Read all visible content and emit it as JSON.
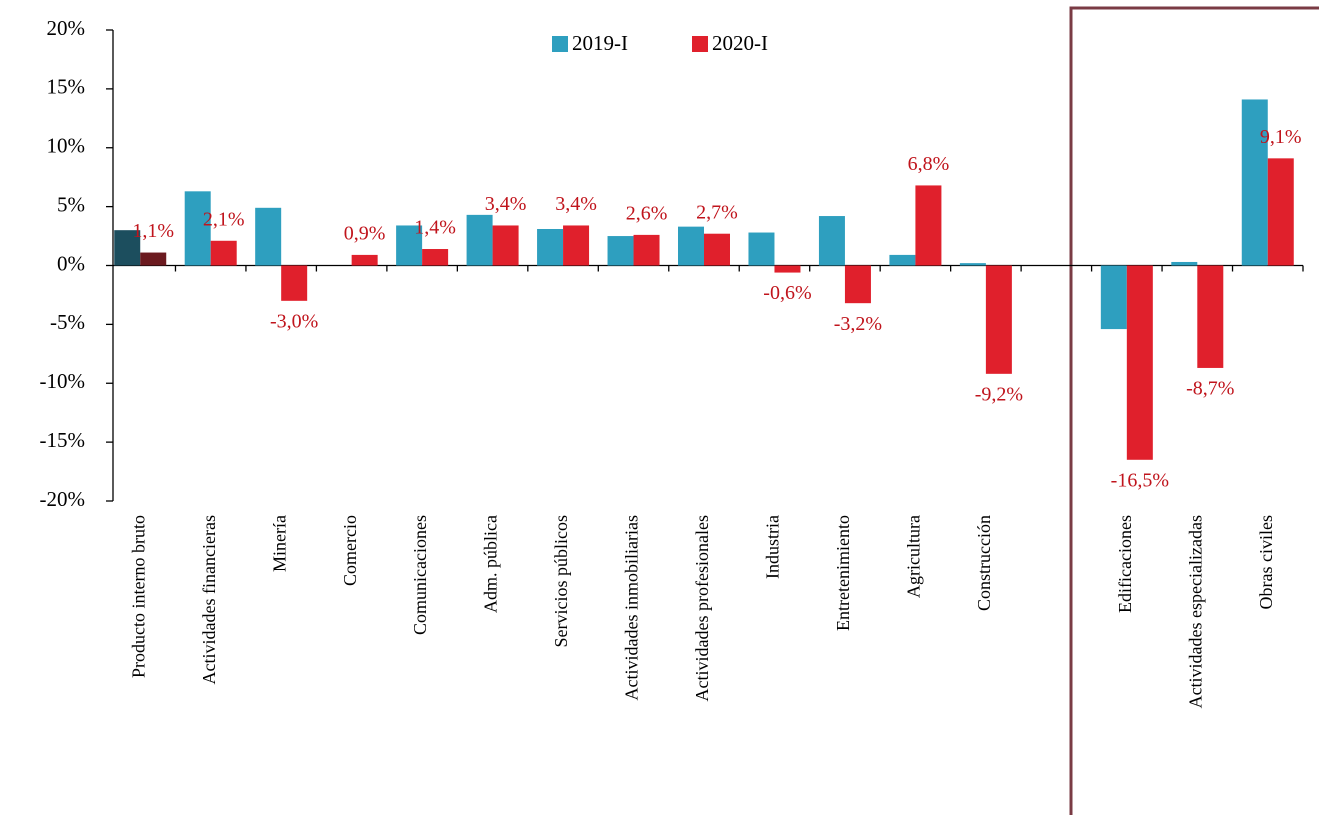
{
  "chart_data": {
    "type": "bar",
    "categories": [
      "Producto interno bruto",
      "Actividades financieras",
      "Minería",
      "Comercio",
      "Comunicaciones",
      "Adm. pública",
      "Servicios públicos",
      "Actividades inmobiliarias",
      "Actividades profesionales",
      "Industria",
      "Entretenimiento",
      "Agricultura",
      "Construcción",
      null,
      "Edificaciones",
      "Actividades especializadas",
      "Obras civiles"
    ],
    "series": [
      {
        "name": "2019-I",
        "color": "#2e9fbf",
        "colors": [
          "#1c4e5e",
          "#2e9fbf",
          "#2e9fbf",
          "#2e9fbf",
          "#2e9fbf",
          "#2e9fbf",
          "#2e9fbf",
          "#2e9fbf",
          "#2e9fbf",
          "#2e9fbf",
          "#2e9fbf",
          "#2e9fbf",
          "#2e9fbf",
          "#2e9fbf",
          "#2e9fbf",
          "#2e9fbf",
          "#2e9fbf"
        ],
        "values": [
          3.0,
          6.3,
          4.9,
          0,
          3.4,
          4.3,
          3.1,
          2.5,
          3.3,
          2.8,
          4.2,
          0.9,
          0.2,
          null,
          -5.4,
          0.3,
          14.1
        ]
      },
      {
        "name": "2020-I",
        "color": "#e0202c",
        "colors": [
          "#6b1a1f",
          "#e0202c",
          "#e0202c",
          "#e0202c",
          "#e0202c",
          "#e0202c",
          "#e0202c",
          "#e0202c",
          "#e0202c",
          "#e0202c",
          "#e0202c",
          "#e0202c",
          "#e0202c",
          "#e0202c",
          "#e0202c",
          "#e0202c",
          "#e0202c"
        ],
        "values": [
          1.1,
          2.1,
          -3.0,
          0.9,
          1.4,
          3.4,
          3.4,
          2.6,
          2.7,
          -0.6,
          -3.2,
          6.8,
          -9.2,
          null,
          -16.5,
          -8.7,
          9.1
        ],
        "value_labels": [
          "1,1%",
          "2,1%",
          "-3,0%",
          "0,9%",
          "1,4%",
          "3,4%",
          "3,4%",
          "2,6%",
          "2,7%",
          "-0,6%",
          "-3,2%",
          "6,8%",
          "-9,2%",
          null,
          "-16,5%",
          "-8,7%",
          "9,1%"
        ]
      }
    ],
    "ylim": [
      -20,
      20
    ],
    "yticks": [
      {
        "value": -20,
        "label": "-20%"
      },
      {
        "value": -15,
        "label": "-15%"
      },
      {
        "value": -10,
        "label": "-10%"
      },
      {
        "value": -5,
        "label": "-5%"
      },
      {
        "value": 0,
        "label": "0%"
      },
      {
        "value": 5,
        "label": "5%"
      },
      {
        "value": 10,
        "label": "10%"
      },
      {
        "value": 15,
        "label": "15%"
      },
      {
        "value": 20,
        "label": "20%"
      }
    ],
    "legend": "top",
    "grid": false
  }
}
